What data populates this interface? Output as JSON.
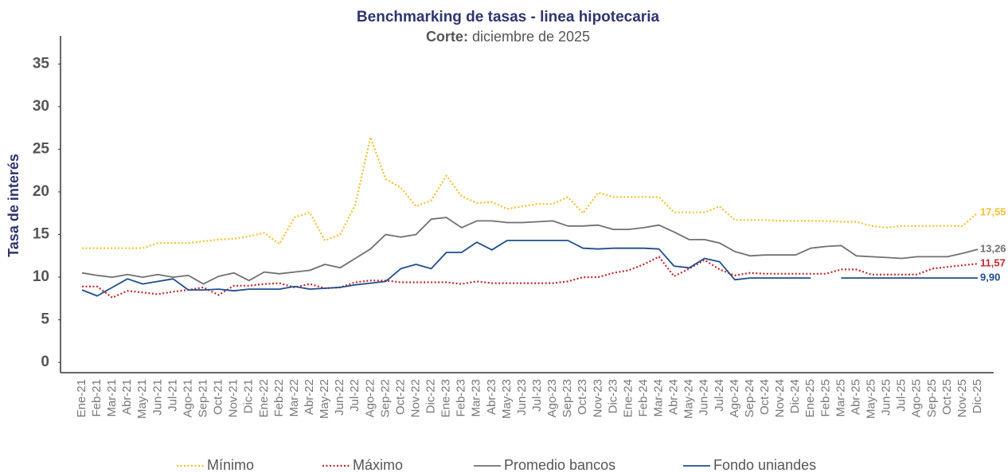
{
  "chart_data": {
    "type": "line",
    "title": "Benchmarking de tasas - linea hipotecaria",
    "subtitle_label": "Corte:",
    "subtitle": "diciembre de 2025",
    "ylabel": "Tasa de interés",
    "categories": [
      "Ene-21",
      "Feb-21",
      "Mar-21",
      "Abr-21",
      "May-21",
      "Jun-21",
      "Jul-21",
      "Ago-21",
      "Sep-21",
      "Oct-21",
      "Nov-21",
      "Dic-21",
      "Ene-22",
      "Feb-22",
      "Mar-22",
      "Abr-22",
      "May-22",
      "Jun-22",
      "Jul-22",
      "Ago-22",
      "Sep-22",
      "Oct-22",
      "Nov-22",
      "Dic-22",
      "Ene-23",
      "Feb-23",
      "Mar-23",
      "Abr-23",
      "May-23",
      "Jun-23",
      "Jul-23",
      "Ago-23",
      "Sep-23",
      "Oct-23",
      "Nov-23",
      "Dic-23",
      "Ene-24",
      "Feb-24",
      "Mar-24",
      "Abr-24",
      "May-24",
      "Jun-24",
      "Jul-24",
      "Ago-24",
      "Sep-24",
      "Oct-24",
      "Nov-24",
      "Dic-24",
      "Ene-25",
      "Feb-25",
      "Mar-25",
      "Abr-25",
      "May-25",
      "Jun-25",
      "Jul-25",
      "Ago-25",
      "Sep-25",
      "Oct-25",
      "Nov-25",
      "Dic-25"
    ],
    "series": [
      {
        "name": "Mínimo",
        "color": "#f2c12e",
        "line_style": "dotted",
        "end_label": "17,55",
        "values": [
          13.4,
          13.4,
          13.4,
          13.4,
          13.4,
          14.0,
          14.0,
          14.0,
          14.2,
          14.4,
          14.5,
          14.8,
          15.2,
          13.9,
          17.0,
          17.6,
          14.3,
          15.0,
          18.5,
          26.4,
          21.5,
          20.5,
          18.3,
          19.0,
          21.9,
          19.5,
          18.7,
          18.8,
          18.0,
          18.3,
          18.6,
          18.6,
          19.4,
          17.5,
          19.9,
          19.4,
          19.4,
          19.4,
          19.4,
          17.6,
          17.6,
          17.6,
          18.3,
          16.7,
          16.7,
          16.7,
          16.6,
          16.6,
          16.6,
          16.6,
          16.5,
          16.5,
          16.0,
          15.8,
          16.0,
          16.0,
          16.0,
          16.0,
          16.0,
          17.55
        ]
      },
      {
        "name": "Máximo",
        "color": "#c0272d",
        "line_style": "dotted",
        "end_label": "11,57",
        "values": [
          8.9,
          8.9,
          7.6,
          8.4,
          8.2,
          8.0,
          8.3,
          8.5,
          8.8,
          7.9,
          9.0,
          9.0,
          9.2,
          9.3,
          8.8,
          9.2,
          8.7,
          8.8,
          9.4,
          9.6,
          9.6,
          9.4,
          9.4,
          9.4,
          9.4,
          9.2,
          9.5,
          9.3,
          9.3,
          9.3,
          9.3,
          9.3,
          9.5,
          10.0,
          10.0,
          10.5,
          10.8,
          11.5,
          12.4,
          10.1,
          11.0,
          12.0,
          10.9,
          10.2,
          10.5,
          10.4,
          10.4,
          10.4,
          10.4,
          10.4,
          10.9,
          10.9,
          10.3,
          10.3,
          10.3,
          10.3,
          11.0,
          11.2,
          11.4,
          11.57
        ]
      },
      {
        "name": "Promedio bancos",
        "color": "#707070",
        "line_style": "solid",
        "end_label": "13,26",
        "values": [
          10.5,
          10.2,
          10.0,
          10.3,
          10.0,
          10.3,
          10.0,
          10.2,
          9.2,
          10.1,
          10.5,
          9.6,
          10.6,
          10.4,
          10.6,
          10.8,
          11.5,
          11.1,
          12.2,
          13.3,
          15.0,
          14.7,
          15.0,
          16.8,
          17.0,
          15.8,
          16.6,
          16.6,
          16.4,
          16.4,
          16.5,
          16.6,
          16.0,
          16.0,
          16.1,
          15.6,
          15.6,
          15.8,
          16.1,
          15.3,
          14.4,
          14.4,
          14.0,
          13.0,
          12.5,
          12.6,
          12.6,
          12.6,
          13.4,
          13.6,
          13.7,
          12.5,
          12.4,
          12.3,
          12.2,
          12.4,
          12.4,
          12.4,
          12.8,
          13.26
        ]
      },
      {
        "name": "Fondo uniandes",
        "color": "#1f4e8c",
        "line_style": "solid",
        "end_label": "9,90",
        "values": [
          8.5,
          7.8,
          8.8,
          9.8,
          9.2,
          9.5,
          9.8,
          8.5,
          8.5,
          8.6,
          8.4,
          8.6,
          8.6,
          8.6,
          8.9,
          8.6,
          8.7,
          8.8,
          9.1,
          9.3,
          9.5,
          11.0,
          11.5,
          11.0,
          12.9,
          12.9,
          14.1,
          13.2,
          14.3,
          14.3,
          14.3,
          14.3,
          14.3,
          13.4,
          13.3,
          13.4,
          13.4,
          13.4,
          13.3,
          11.3,
          11.1,
          12.2,
          11.8,
          9.7,
          9.9,
          9.9,
          9.9,
          9.9,
          9.9,
          null,
          9.9,
          9.9,
          9.9,
          9.9,
          9.9,
          9.9,
          9.9,
          9.9,
          9.9,
          9.9
        ]
      }
    ],
    "ylim": [
      -1.2,
      38.3
    ],
    "yticks": [
      0,
      5,
      10,
      15,
      20,
      25,
      30,
      35
    ],
    "grid": false,
    "legend": "bottom"
  }
}
